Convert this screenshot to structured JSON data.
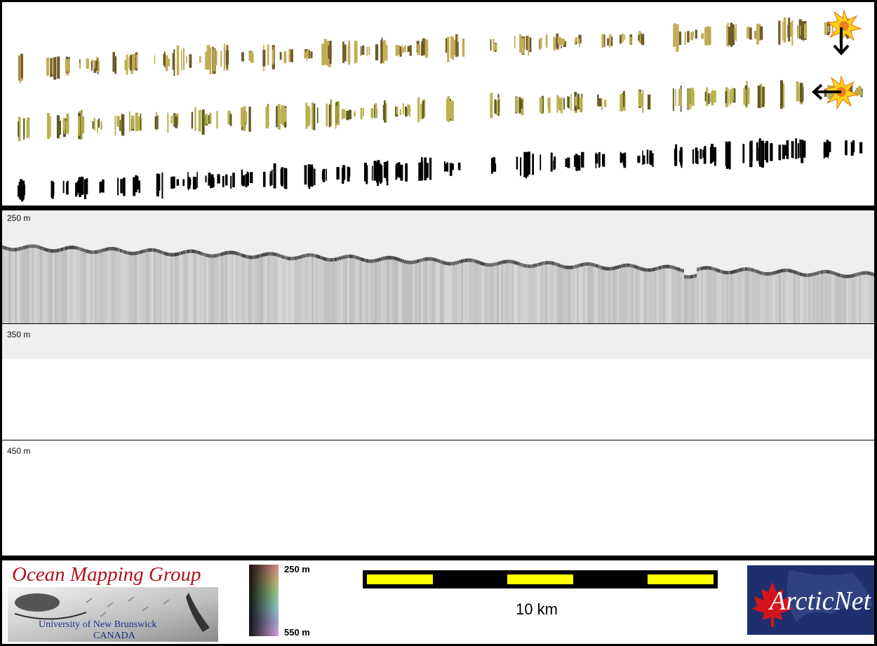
{
  "profile": {
    "depth_labels": [
      "250 m",
      "350 m",
      "450 m"
    ]
  },
  "legend": {
    "logo": {
      "title": "Ocean Mapping Group",
      "subtitle1": "University of New Brunswick",
      "subtitle2": "CANADA"
    },
    "colorbar": {
      "top_label": "250 m",
      "bottom_label": "550 m"
    },
    "scalebar": {
      "label": "10 km",
      "fill_color": "#ffff00"
    },
    "arcticnet": {
      "text": "ArcticNet",
      "bg_color": "#1f2f6e",
      "leaf_color": "#d4141c"
    }
  },
  "map": {
    "sun_color": "#ffd21a",
    "arrows": [
      "arrow-down-icon",
      "arrow-left-icon"
    ],
    "strip_colors": {
      "top": "#c2ad55",
      "middle": "#b9b04f",
      "bottom": "#000000"
    }
  }
}
